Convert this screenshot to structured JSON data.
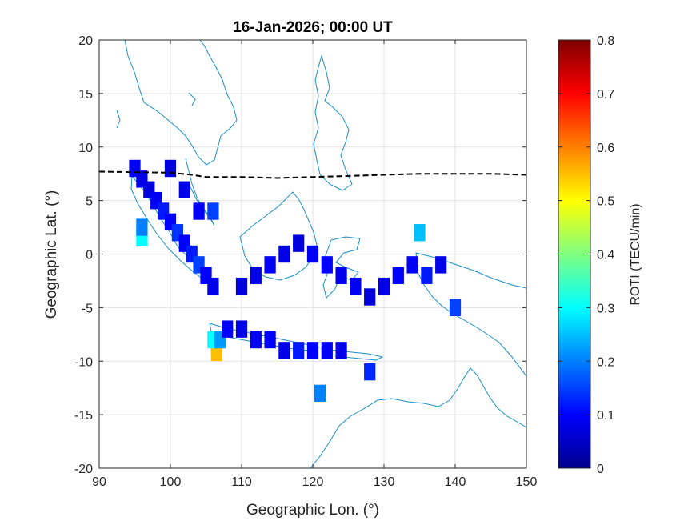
{
  "chart_data": {
    "type": "heatmap",
    "title": "16-Jan-2026; 00:00 UT",
    "xlabel": "Geographic Lon. (°)",
    "ylabel": "Geographic Lat. (°)",
    "xlim": [
      90,
      150
    ],
    "ylim": [
      -20,
      20
    ],
    "xticks": [
      90,
      100,
      110,
      120,
      130,
      140,
      150
    ],
    "yticks": [
      -20,
      -15,
      -10,
      -5,
      0,
      5,
      10,
      15,
      20
    ],
    "grid": true,
    "colorbar": {
      "label": "ROTI (TECU/min)",
      "range": [
        0,
        0.8
      ],
      "ticks": [
        0,
        0.1,
        0.2,
        0.3,
        0.4,
        0.5,
        0.6,
        0.7,
        0.8
      ],
      "colormap": "jet"
    },
    "magnetic_equator": [
      [
        90,
        7.7
      ],
      [
        100,
        7.6
      ],
      [
        103,
        7.4
      ],
      [
        105,
        7.2
      ],
      [
        110,
        7.2
      ],
      [
        115,
        7.1
      ],
      [
        120,
        7.2
      ],
      [
        125,
        7.3
      ],
      [
        130,
        7.4
      ],
      [
        135,
        7.5
      ],
      [
        140,
        7.5
      ],
      [
        145,
        7.5
      ],
      [
        150,
        7.4
      ]
    ],
    "cells": [
      {
        "lon": 96,
        "lat": 1.5,
        "value": 0.3
      },
      {
        "lon": 96,
        "lat": 2.5,
        "value": 0.2
      },
      {
        "lon": 95,
        "lat": 8,
        "value": 0.09
      },
      {
        "lon": 96,
        "lat": 7,
        "value": 0.08
      },
      {
        "lon": 97,
        "lat": 6,
        "value": 0.07
      },
      {
        "lon": 98,
        "lat": 5,
        "value": 0.09
      },
      {
        "lon": 99,
        "lat": 4,
        "value": 0.12
      },
      {
        "lon": 100,
        "lat": 3,
        "value": 0.1
      },
      {
        "lon": 101,
        "lat": 2,
        "value": 0.14
      },
      {
        "lon": 102,
        "lat": 1,
        "value": 0.1
      },
      {
        "lon": 103,
        "lat": 0,
        "value": 0.12
      },
      {
        "lon": 104,
        "lat": -1,
        "value": 0.15
      },
      {
        "lon": 105,
        "lat": -2,
        "value": 0.1
      },
      {
        "lon": 106,
        "lat": -3,
        "value": 0.08
      },
      {
        "lon": 104,
        "lat": 4,
        "value": 0.09
      },
      {
        "lon": 102,
        "lat": 6,
        "value": 0.08
      },
      {
        "lon": 100,
        "lat": 8,
        "value": 0.07
      },
      {
        "lon": 106,
        "lat": 4,
        "value": 0.15
      },
      {
        "lon": 106.5,
        "lat": -8.5,
        "value": 0.65
      },
      {
        "lon": 106.5,
        "lat": -9.2,
        "value": 0.55
      },
      {
        "lon": 106,
        "lat": -8,
        "value": 0.3
      },
      {
        "lon": 107,
        "lat": -8,
        "value": 0.22
      },
      {
        "lon": 108,
        "lat": -7,
        "value": 0.1
      },
      {
        "lon": 110,
        "lat": -7,
        "value": 0.08
      },
      {
        "lon": 112,
        "lat": -8,
        "value": 0.09
      },
      {
        "lon": 114,
        "lat": -8,
        "value": 0.1
      },
      {
        "lon": 116,
        "lat": -9,
        "value": 0.08
      },
      {
        "lon": 118,
        "lat": -9,
        "value": 0.12
      },
      {
        "lon": 120,
        "lat": -9,
        "value": 0.1
      },
      {
        "lon": 122,
        "lat": -9,
        "value": 0.09
      },
      {
        "lon": 124,
        "lat": -9,
        "value": 0.08
      },
      {
        "lon": 110,
        "lat": -3,
        "value": 0.07
      },
      {
        "lon": 112,
        "lat": -2,
        "value": 0.08
      },
      {
        "lon": 114,
        "lat": -1,
        "value": 0.09
      },
      {
        "lon": 116,
        "lat": 0,
        "value": 0.08
      },
      {
        "lon": 118,
        "lat": 1,
        "value": 0.07
      },
      {
        "lon": 120,
        "lat": 0,
        "value": 0.09
      },
      {
        "lon": 122,
        "lat": -1,
        "value": 0.1
      },
      {
        "lon": 124,
        "lat": -2,
        "value": 0.08
      },
      {
        "lon": 126,
        "lat": -3,
        "value": 0.09
      },
      {
        "lon": 128,
        "lat": -4,
        "value": 0.07
      },
      {
        "lon": 130,
        "lat": -3,
        "value": 0.08
      },
      {
        "lon": 132,
        "lat": -2,
        "value": 0.1
      },
      {
        "lon": 134,
        "lat": -1,
        "value": 0.09
      },
      {
        "lon": 136,
        "lat": -2,
        "value": 0.12
      },
      {
        "lon": 138,
        "lat": -1,
        "value": 0.08
      },
      {
        "lon": 135,
        "lat": 2,
        "value": 0.25
      },
      {
        "lon": 140,
        "lat": -5,
        "value": 0.15
      },
      {
        "lon": 128,
        "lat": -11,
        "value": 0.13
      },
      {
        "lon": 121,
        "lat": -13,
        "value": 0.2
      }
    ]
  }
}
